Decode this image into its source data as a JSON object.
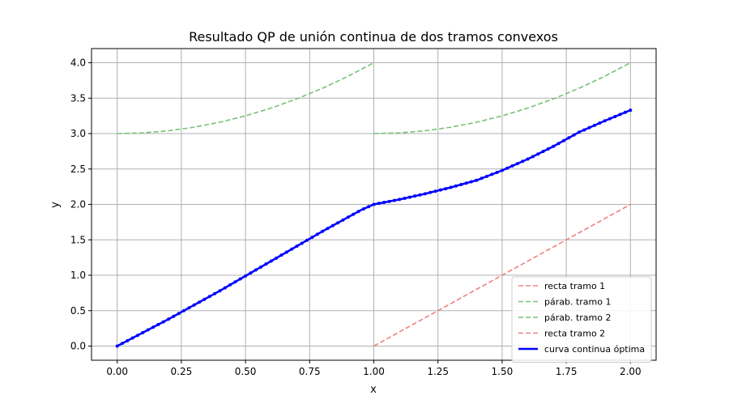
{
  "chart_data": {
    "type": "line",
    "title": "Resultado QP de unión continua de dos tramos convexos",
    "xlabel": "x",
    "ylabel": "y",
    "xlim": [
      -0.1,
      2.1
    ],
    "ylim": [
      -0.2,
      4.2
    ],
    "xticks": [
      0.0,
      0.25,
      0.5,
      0.75,
      1.0,
      1.25,
      1.5,
      1.75,
      2.0
    ],
    "xtick_labels": [
      "0.00",
      "0.25",
      "0.50",
      "0.75",
      "1.00",
      "1.25",
      "1.50",
      "1.75",
      "2.00"
    ],
    "yticks": [
      0.0,
      0.5,
      1.0,
      1.5,
      2.0,
      2.5,
      3.0,
      3.5,
      4.0
    ],
    "ytick_labels": [
      "0.0",
      "0.5",
      "1.0",
      "1.5",
      "2.0",
      "2.5",
      "3.0",
      "3.5",
      "4.0"
    ],
    "grid": true,
    "legend_position": "lower-right",
    "series": [
      {
        "name": "recta tramo 1",
        "color": "#f08080",
        "style": "dashed",
        "x": [],
        "y": []
      },
      {
        "name": "párab. tramo 1",
        "color": "#77c077",
        "style": "dashed",
        "x": [
          0.0,
          0.1,
          0.2,
          0.3,
          0.4,
          0.5,
          0.6,
          0.7,
          0.8,
          0.9,
          1.0
        ],
        "y": [
          3.0,
          3.01,
          3.04,
          3.09,
          3.16,
          3.25,
          3.36,
          3.49,
          3.64,
          3.81,
          4.0
        ]
      },
      {
        "name": "párab. tramo 2",
        "color": "#77c077",
        "style": "dashed",
        "x": [
          1.0,
          1.1,
          1.2,
          1.3,
          1.4,
          1.5,
          1.6,
          1.7,
          1.8,
          1.9,
          2.0
        ],
        "y": [
          3.0,
          3.01,
          3.04,
          3.09,
          3.16,
          3.25,
          3.36,
          3.49,
          3.64,
          3.81,
          4.0
        ]
      },
      {
        "name": "recta tramo 2",
        "color": "#f08080",
        "style": "dashed",
        "x": [
          1.0,
          2.0
        ],
        "y": [
          0.0,
          2.0
        ]
      },
      {
        "name": "curva continua óptima",
        "color": "#0000ff",
        "style": "solid",
        "markers": true,
        "x": [
          0.0,
          0.1,
          0.2,
          0.3,
          0.4,
          0.5,
          0.6,
          0.7,
          0.8,
          0.9,
          0.95,
          1.0,
          1.1,
          1.2,
          1.3,
          1.4,
          1.5,
          1.6,
          1.7,
          1.8,
          1.9,
          2.0
        ],
        "y": [
          0.0,
          0.19,
          0.38,
          0.58,
          0.78,
          0.99,
          1.2,
          1.41,
          1.62,
          1.82,
          1.92,
          2.0,
          2.07,
          2.15,
          2.24,
          2.34,
          2.48,
          2.64,
          2.82,
          3.02,
          3.18,
          3.33
        ]
      }
    ]
  }
}
